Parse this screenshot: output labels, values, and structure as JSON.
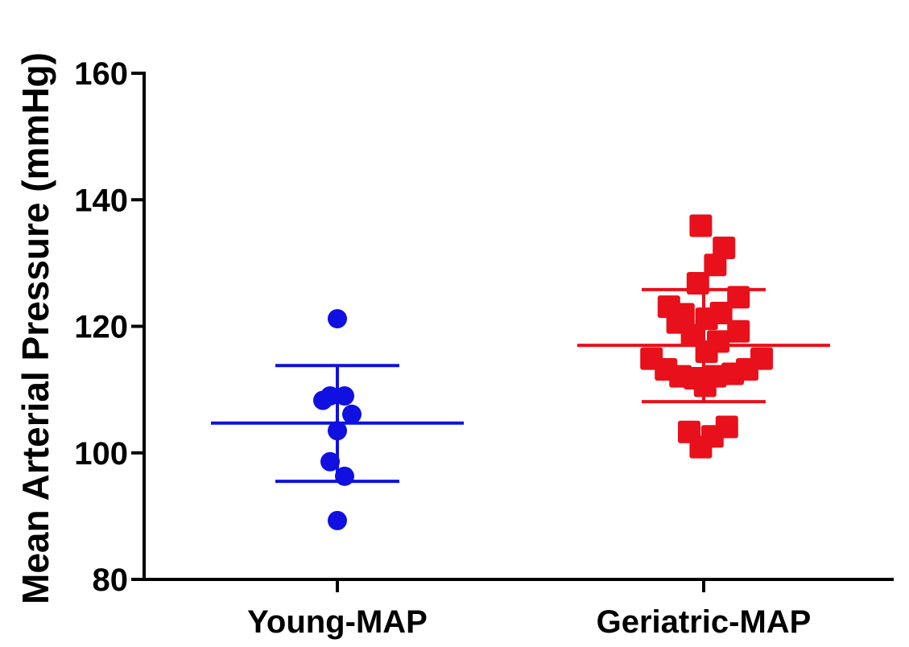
{
  "chart_data": {
    "type": "scatter",
    "ylabel": "Mean Arterial  Pressure (mmHg)",
    "xlabel": "",
    "ylim": [
      80,
      160
    ],
    "yticks": [
      80,
      100,
      120,
      140,
      160
    ],
    "categories": [
      "Young-MAP",
      "Geriatric-MAP"
    ],
    "grid": false,
    "legend": "none",
    "series": [
      {
        "category": "Young-MAP",
        "marker": "circle",
        "color": "#1010e0",
        "mean": 104.7,
        "sd_upper": 113.8,
        "sd_lower": 95.5,
        "points": [
          {
            "offset": 0,
            "y": 121.2
          },
          {
            "offset": -1,
            "y": 108.3
          },
          {
            "offset": -0.5,
            "y": 109.0
          },
          {
            "offset": 0.5,
            "y": 109.0
          },
          {
            "offset": 1,
            "y": 106.1
          },
          {
            "offset": 0,
            "y": 103.5
          },
          {
            "offset": -0.5,
            "y": 98.6
          },
          {
            "offset": 0.5,
            "y": 96.3
          },
          {
            "offset": 0,
            "y": 89.3
          }
        ]
      },
      {
        "category": "Geriatric-MAP",
        "marker": "square",
        "color": "#e8101a",
        "mean": 117.0,
        "sd_upper": 125.8,
        "sd_lower": 108.1,
        "points": [
          {
            "offset": -0.2,
            "y": 135.9
          },
          {
            "offset": 1.4,
            "y": 132.4
          },
          {
            "offset": 0.8,
            "y": 129.7
          },
          {
            "offset": -0.4,
            "y": 126.8
          },
          {
            "offset": 2.4,
            "y": 124.6
          },
          {
            "offset": -2.4,
            "y": 123.1
          },
          {
            "offset": -1.4,
            "y": 121.9
          },
          {
            "offset": 1.2,
            "y": 122.1
          },
          {
            "offset": -1.8,
            "y": 120.6
          },
          {
            "offset": 0.2,
            "y": 121.2
          },
          {
            "offset": 2.4,
            "y": 119.2
          },
          {
            "offset": -0.8,
            "y": 118.6
          },
          {
            "offset": 1.0,
            "y": 117.6
          },
          {
            "offset": 0.2,
            "y": 116.0
          },
          {
            "offset": -3.6,
            "y": 114.9
          },
          {
            "offset": 4.0,
            "y": 114.9
          },
          {
            "offset": -2.6,
            "y": 113.2
          },
          {
            "offset": 3.0,
            "y": 113.2
          },
          {
            "offset": -1.6,
            "y": 112.1
          },
          {
            "offset": -0.6,
            "y": 111.8
          },
          {
            "offset": 0.8,
            "y": 112.1
          },
          {
            "offset": 2.0,
            "y": 112.5
          },
          {
            "offset": 0.1,
            "y": 110.6
          },
          {
            "offset": -1.0,
            "y": 103.3
          },
          {
            "offset": 1.6,
            "y": 104.1
          },
          {
            "offset": 0.6,
            "y": 102.6
          },
          {
            "offset": -0.2,
            "y": 100.9
          }
        ]
      }
    ]
  }
}
